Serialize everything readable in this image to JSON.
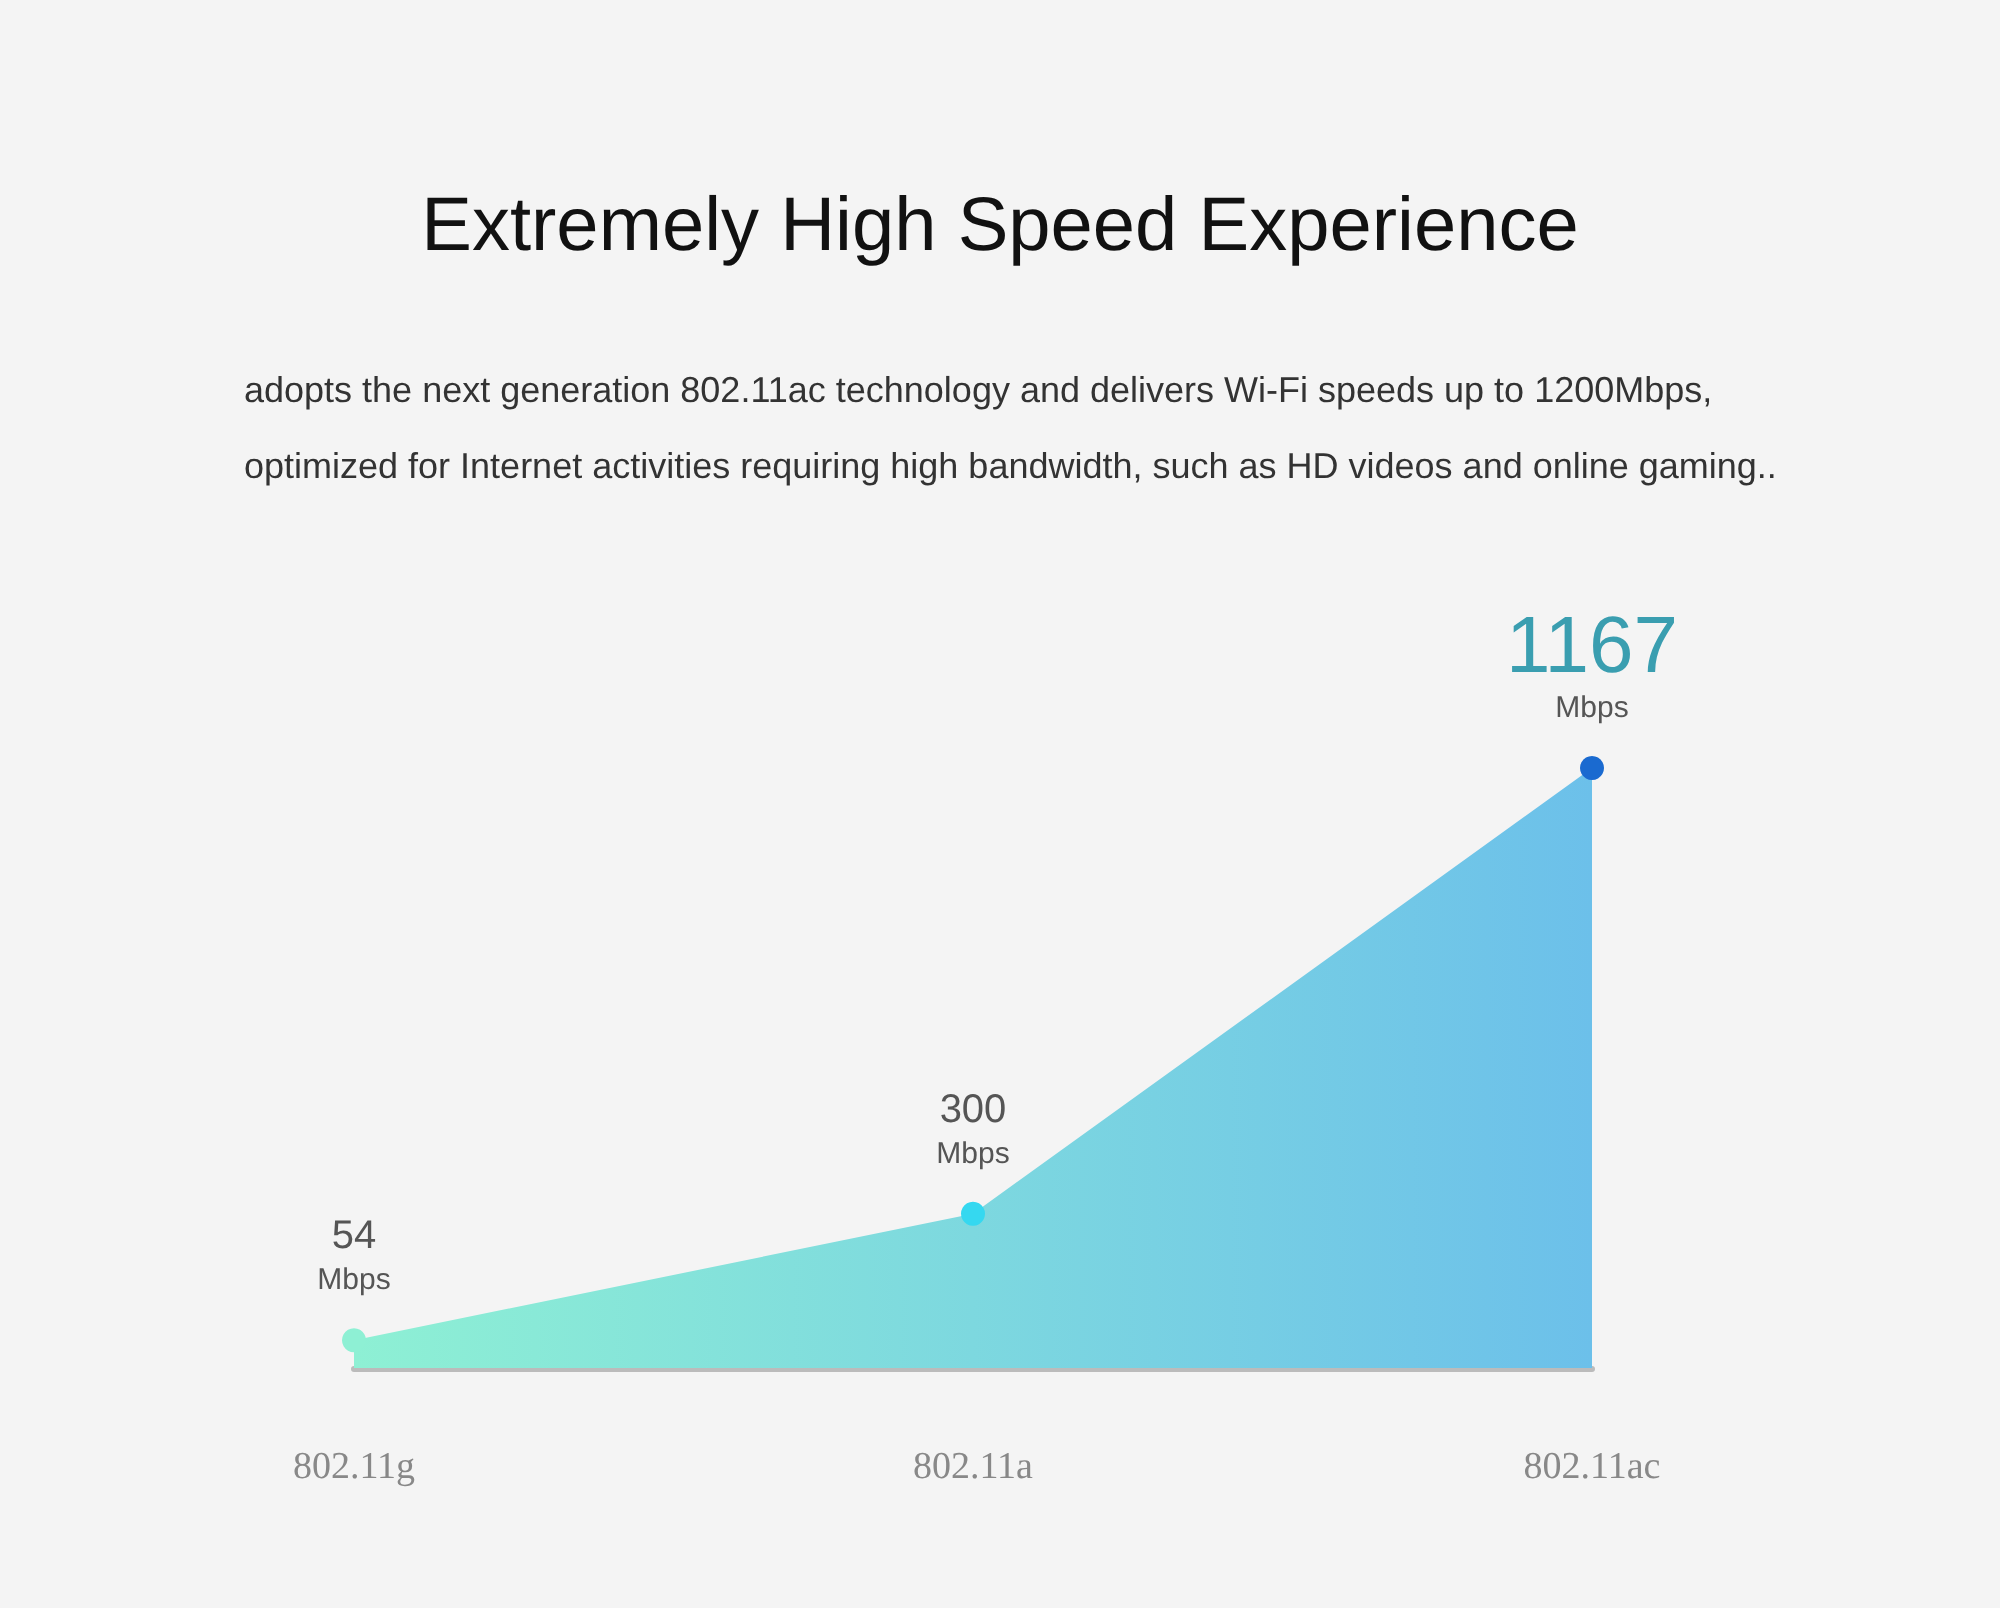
{
  "chart_data": {
    "type": "area",
    "title": "Extremely High Speed Experience",
    "subtitle": "adopts the next generation 802.11ac technology and delivers Wi-Fi speeds up to 1200Mbps, optimized for Internet activities requiring high bandwidth, such as HD videos and online gaming..",
    "categories": [
      "802.11g",
      "802.11a",
      "802.11ac"
    ],
    "values": [
      54,
      300,
      1167
    ],
    "value_labels": [
      "54\nMbps",
      "300\nMbps",
      "1167\nMbps"
    ],
    "color": "#6cc0ea",
    "colors": [
      "#8ef0d4",
      "#35d8f0",
      "#1a6ad0"
    ],
    "marker": "circle"
  }
}
